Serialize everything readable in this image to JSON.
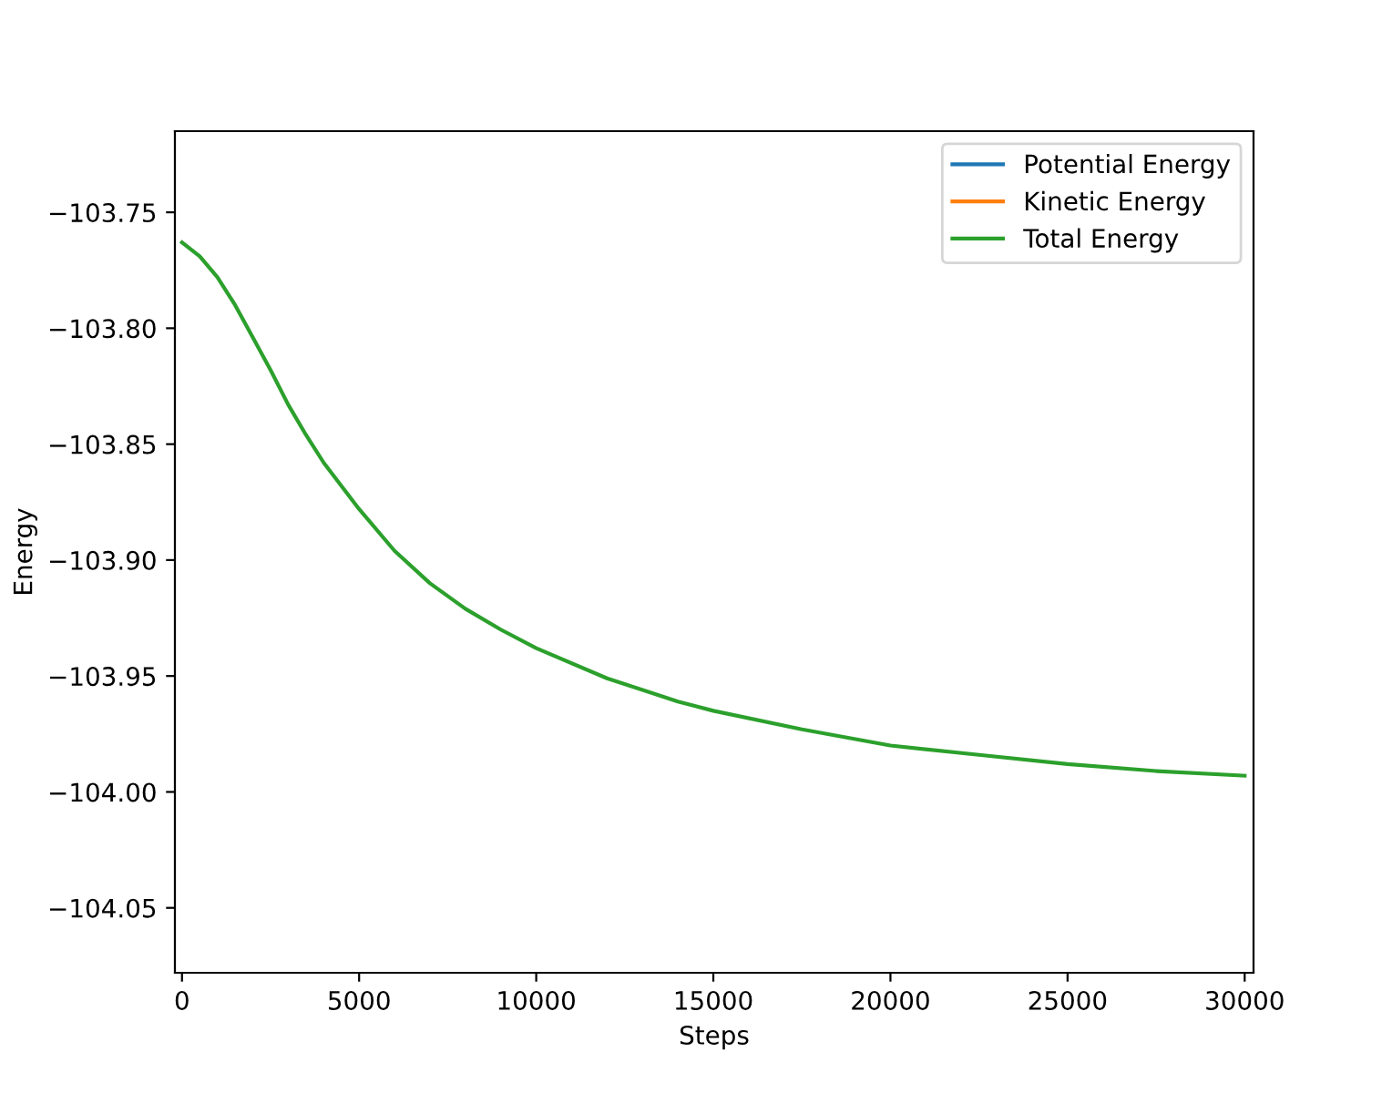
{
  "chart_data": {
    "type": "line",
    "xlabel": "Steps",
    "ylabel": "Energy",
    "x": [
      0,
      500,
      1000,
      1500,
      2000,
      2500,
      3000,
      3500,
      4000,
      4500,
      5000,
      6000,
      7000,
      8000,
      9000,
      10000,
      12000,
      14000,
      15000,
      17500,
      20000,
      22500,
      25000,
      27500,
      30000
    ],
    "series": [
      {
        "name": "Potential Energy",
        "color": "#1f77b4",
        "values": [
          null,
          null,
          null,
          null,
          null,
          null,
          null,
          null,
          null,
          null,
          null,
          null,
          null,
          null,
          null,
          null,
          null,
          null,
          null,
          null,
          null,
          null,
          null,
          null,
          null
        ]
      },
      {
        "name": "Kinetic Energy",
        "color": "#ff7f0e",
        "values": [
          null,
          null,
          null,
          null,
          null,
          null,
          null,
          null,
          null,
          null,
          null,
          null,
          null,
          null,
          null,
          null,
          null,
          null,
          null,
          null,
          null,
          null,
          null,
          null,
          null
        ]
      },
      {
        "name": "Total Energy",
        "color": "#2ca02c",
        "values": [
          -103.763,
          -103.769,
          -103.778,
          -103.79,
          -103.804,
          -103.818,
          -103.833,
          -103.846,
          -103.858,
          -103.868,
          -103.878,
          -103.896,
          -103.91,
          -103.921,
          -103.93,
          -103.938,
          -103.951,
          -103.961,
          -103.965,
          -103.973,
          -103.98,
          -103.984,
          -103.988,
          -103.991,
          -103.993
        ]
      }
    ],
    "xlim": [
      -200,
      30250
    ],
    "ylim": [
      -104.078,
      -103.715
    ],
    "xticks": [
      0,
      5000,
      10000,
      15000,
      20000,
      25000,
      30000
    ],
    "yticks": [
      {
        "value": -104.05,
        "label": "−104.05"
      },
      {
        "value": -104.0,
        "label": "−104.00"
      },
      {
        "value": -103.95,
        "label": "−103.95"
      },
      {
        "value": -103.9,
        "label": "−103.90"
      },
      {
        "value": -103.85,
        "label": "−103.85"
      },
      {
        "value": -103.8,
        "label": "−103.80"
      },
      {
        "value": -103.75,
        "label": "−103.75"
      }
    ],
    "legend": "top right",
    "grid": false
  }
}
